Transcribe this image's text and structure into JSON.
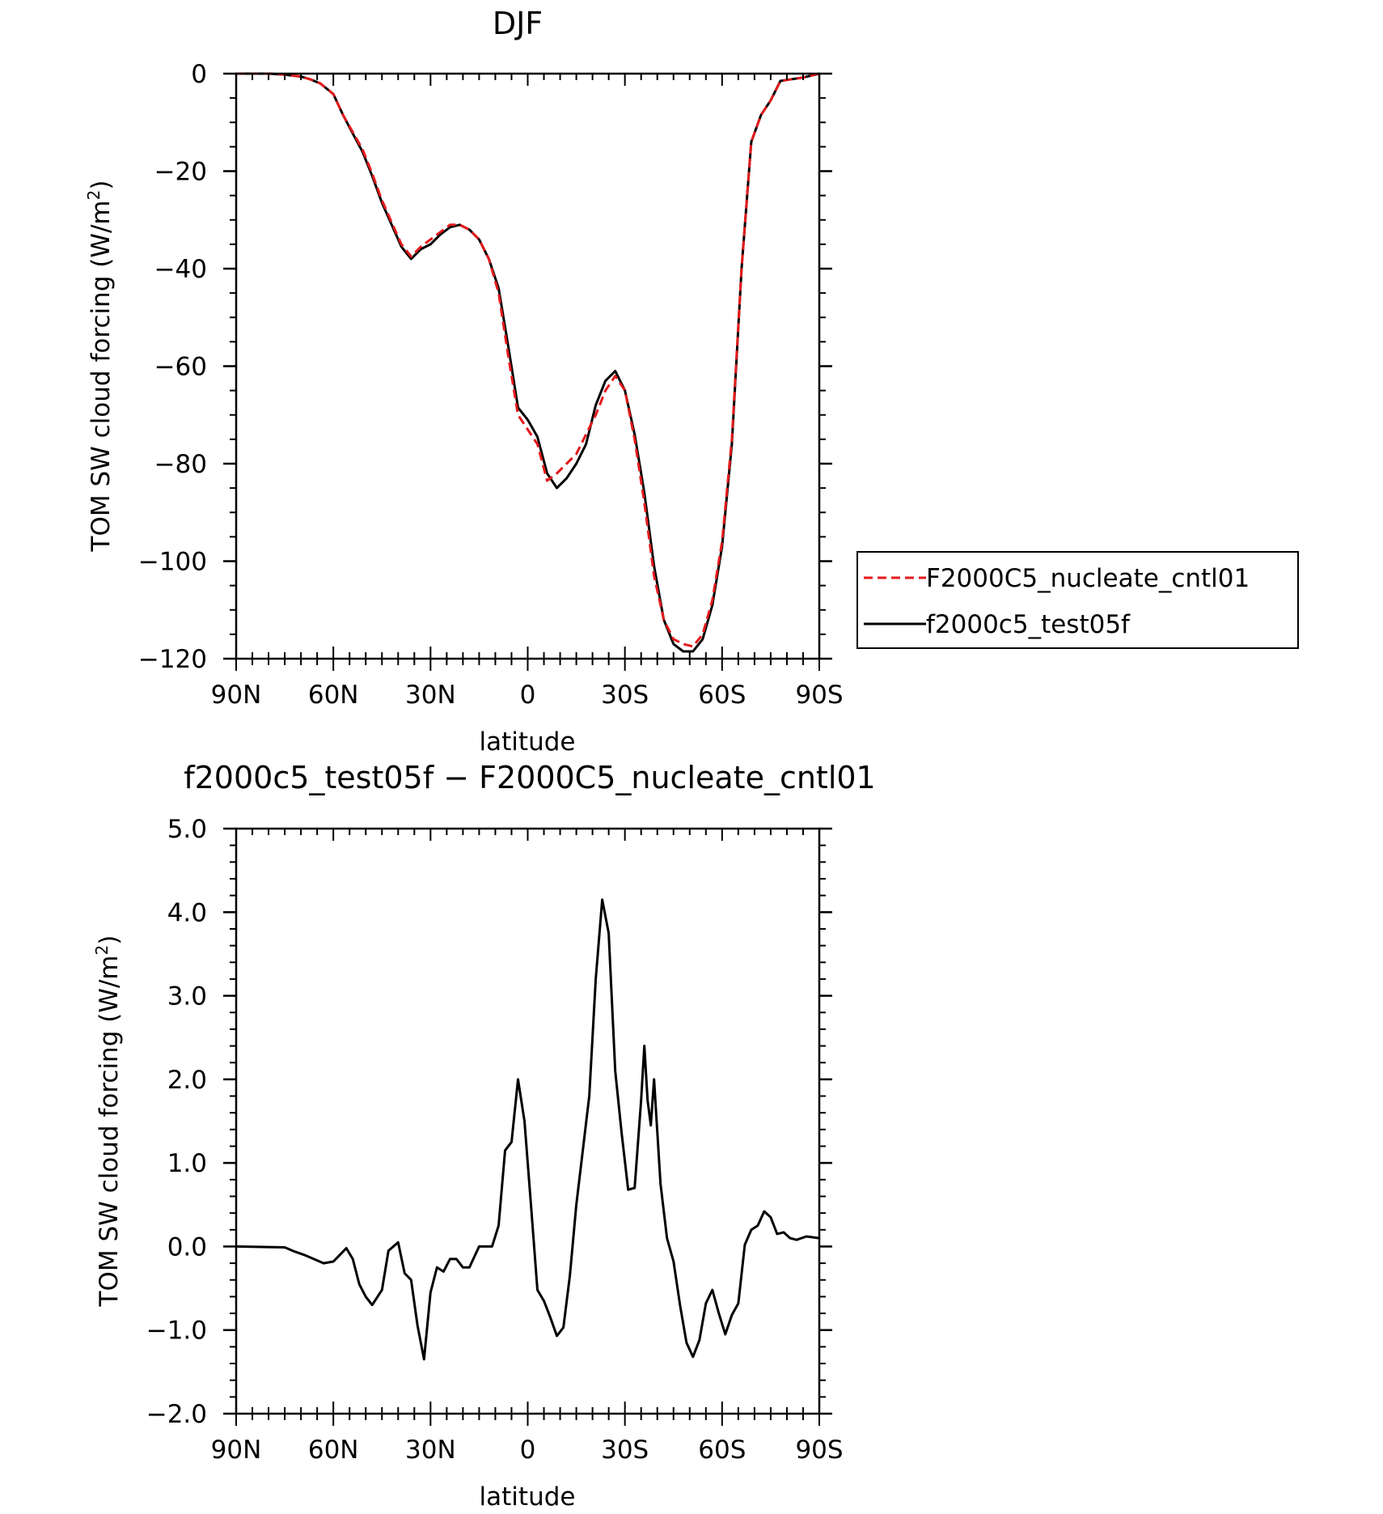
{
  "chart_data": [
    {
      "type": "line",
      "title": "DJF",
      "xlabel": "latitude",
      "ylabel_main": "TOM SW cloud forcing (W/m",
      "ylabel_sup": "2",
      "ylabel_end": ")",
      "xlim": [
        90,
        -90
      ],
      "ylim": [
        -120,
        0
      ],
      "x_ticks": [
        {
          "v": 90,
          "label": "90N"
        },
        {
          "v": 60,
          "label": "60N"
        },
        {
          "v": 30,
          "label": "30N"
        },
        {
          "v": 0,
          "label": "0"
        },
        {
          "v": -30,
          "label": "30S"
        },
        {
          "v": -60,
          "label": "60S"
        },
        {
          "v": -90,
          "label": "90S"
        }
      ],
      "y_ticks": [
        {
          "v": 0,
          "label": "0"
        },
        {
          "v": -20,
          "label": "−20"
        },
        {
          "v": -40,
          "label": "−40"
        },
        {
          "v": -60,
          "label": "−60"
        },
        {
          "v": -80,
          "label": "−80"
        },
        {
          "v": -100,
          "label": "−100"
        },
        {
          "v": -120,
          "label": "−120"
        }
      ],
      "legend_position": "right",
      "series": [
        {
          "name": "F2000C5_nucleate_cntl01",
          "color": "#e41a1c",
          "dash": "dashed",
          "x": [
            90,
            80,
            75,
            70,
            67,
            64,
            60,
            57,
            54,
            51,
            48,
            45,
            42,
            39,
            36,
            33,
            30,
            27,
            24,
            21,
            18,
            15,
            12,
            9,
            6,
            3,
            0,
            -3,
            -6,
            -9,
            -12,
            -15,
            -18,
            -21,
            -24,
            -27,
            -30,
            -33,
            -36,
            -39,
            -42,
            -45,
            -48,
            -51,
            -54,
            -57,
            -60,
            -63,
            -66,
            -69,
            -72,
            -75,
            -78,
            -81,
            -85,
            -90
          ],
          "y": [
            0,
            0,
            -0.2,
            -0.6,
            -1.2,
            -2,
            -4.2,
            -8.5,
            -12,
            -15.5,
            -20.5,
            -26,
            -30.5,
            -35,
            -37.5,
            -35.5,
            -34,
            -32.5,
            -31,
            -31,
            -32,
            -34,
            -38,
            -45,
            -58,
            -70,
            -73,
            -76,
            -83.5,
            -82,
            -80,
            -78,
            -74,
            -70,
            -65,
            -62,
            -65,
            -75,
            -88,
            -103,
            -112,
            -116,
            -117,
            -117.5,
            -115,
            -108,
            -96,
            -75,
            -40,
            -14,
            -8.5,
            -5.5,
            -1.5,
            -1.2,
            -0.8,
            0
          ]
        },
        {
          "name": "f2000c5_test05f",
          "color": "#000000",
          "dash": "solid",
          "x": [
            90,
            80,
            75,
            70,
            67,
            64,
            60,
            57,
            54,
            51,
            48,
            45,
            42,
            39,
            36,
            33,
            30,
            27,
            24,
            21,
            18,
            15,
            12,
            9,
            6,
            3,
            0,
            -3,
            -6,
            -9,
            -12,
            -15,
            -18,
            -21,
            -24,
            -27,
            -30,
            -33,
            -36,
            -39,
            -42,
            -45,
            -48,
            -51,
            -54,
            -57,
            -60,
            -63,
            -66,
            -69,
            -72,
            -75,
            -78,
            -81,
            -85,
            -90
          ],
          "y": [
            0,
            0,
            -0.2,
            -0.6,
            -1.2,
            -2,
            -4.2,
            -8.5,
            -12.3,
            -16,
            -21,
            -26.5,
            -31,
            -35.5,
            -38,
            -36,
            -35,
            -33,
            -31.5,
            -31,
            -32,
            -34,
            -38,
            -44,
            -56,
            -68.5,
            -71,
            -74.5,
            -82,
            -85,
            -83,
            -80,
            -76,
            -68,
            -63,
            -61,
            -65,
            -74,
            -86,
            -101,
            -112,
            -117,
            -118.5,
            -118.5,
            -116,
            -109,
            -97,
            -76,
            -40,
            -14,
            -8.5,
            -5.5,
            -1.5,
            -1.2,
            -0.8,
            0
          ]
        }
      ]
    },
    {
      "type": "line",
      "title": "f2000c5_test05f − F2000C5_nucleate_cntl01",
      "xlabel": "latitude",
      "ylabel_main": "TOM SW cloud forcing (W/m",
      "ylabel_sup": "2",
      "ylabel_end": ")",
      "xlim": [
        90,
        -90
      ],
      "ylim": [
        -2,
        5
      ],
      "x_ticks": [
        {
          "v": 90,
          "label": "90N"
        },
        {
          "v": 60,
          "label": "60N"
        },
        {
          "v": 30,
          "label": "30N"
        },
        {
          "v": 0,
          "label": "0"
        },
        {
          "v": -30,
          "label": "30S"
        },
        {
          "v": -60,
          "label": "60S"
        },
        {
          "v": -90,
          "label": "90S"
        }
      ],
      "y_ticks": [
        {
          "v": 5,
          "label": "5.0"
        },
        {
          "v": 4,
          "label": "4.0"
        },
        {
          "v": 3,
          "label": "3.0"
        },
        {
          "v": 2,
          "label": "2.0"
        },
        {
          "v": 1,
          "label": "1.0"
        },
        {
          "v": 0,
          "label": "0.0"
        },
        {
          "v": -1,
          "label": "−1.0"
        },
        {
          "v": -2,
          "label": "−2.0"
        }
      ],
      "series": [
        {
          "color": "#000000",
          "dash": "solid",
          "x": [
            90,
            75,
            72,
            69,
            66,
            63,
            60,
            58,
            56,
            54,
            52,
            50,
            48,
            45,
            43,
            40,
            38,
            36,
            34,
            32,
            30,
            28,
            26,
            24,
            22,
            20,
            18,
            15,
            13,
            11,
            9,
            7,
            5,
            3,
            1,
            -1,
            -3,
            -5,
            -7,
            -9,
            -11,
            -13,
            -15,
            -17,
            -19,
            -21,
            -23,
            -25,
            -27,
            -29,
            -31,
            -33,
            -35,
            -36,
            -37,
            -38,
            -39,
            -41,
            -43,
            -45,
            -47,
            -49,
            -51,
            -53,
            -55,
            -57,
            -59,
            -61,
            -63,
            -65,
            -67,
            -69,
            -71,
            -73,
            -75,
            -77,
            -79,
            -81,
            -83,
            -86,
            -90
          ],
          "y": [
            0,
            -0.01,
            -0.06,
            -0.1,
            -0.15,
            -0.2,
            -0.18,
            -0.1,
            -0.02,
            -0.15,
            -0.45,
            -0.6,
            -0.7,
            -0.52,
            -0.05,
            0.05,
            -0.32,
            -0.4,
            -0.95,
            -1.35,
            -0.55,
            -0.25,
            -0.3,
            -0.15,
            -0.15,
            -0.25,
            -0.25,
            0,
            0,
            0,
            0.25,
            1.15,
            1.25,
            2,
            1.5,
            0.5,
            -0.52,
            -0.65,
            -0.85,
            -1.07,
            -0.97,
            -0.35,
            0.5,
            1.15,
            1.8,
            3.2,
            4.15,
            3.75,
            2.1,
            1.35,
            0.68,
            0.7,
            1.75,
            2.4,
            1.75,
            1.45,
            2,
            0.75,
            0.1,
            -0.18,
            -0.7,
            -1.15,
            -1.32,
            -1.12,
            -0.68,
            -0.52,
            -0.8,
            -1.05,
            -0.82,
            -0.68,
            0.02,
            0.2,
            0.25,
            0.42,
            0.35,
            0.15,
            0.17,
            0.1,
            0.08,
            0.12,
            0.1
          ]
        }
      ]
    }
  ]
}
